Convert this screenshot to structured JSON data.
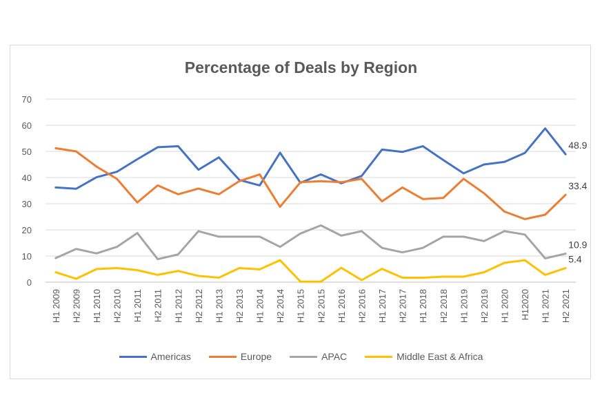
{
  "chart_data": {
    "type": "line",
    "title": "Percentage of Deals by Region",
    "xlabel": "",
    "ylabel": "",
    "ylim": [
      0,
      70
    ],
    "yticks": [
      0,
      10,
      20,
      30,
      40,
      50,
      60,
      70
    ],
    "grid": true,
    "legend_position": "bottom",
    "categories": [
      "H1 2009",
      "H2 2009",
      "H1 2010",
      "H2 2010",
      "H1 2011",
      "H2 2011",
      "H1 2012",
      "H2 2012",
      "H1 2013",
      "H2 2013",
      "H1 2014",
      "H2 2014",
      "H1 2015",
      "H2 2015",
      "H1 2016",
      "H2 2016",
      "H1 2017",
      "H2 2017",
      "H1 2018",
      "H2 2018",
      "H1 2019",
      "H2 2019",
      "H1 2020",
      "H12020",
      "H1 2021",
      "H2 2021"
    ],
    "series": [
      {
        "name": "Americas",
        "color": "#4472c4",
        "values": [
          36.2,
          35.7,
          40.1,
          42.2,
          47.0,
          51.6,
          52.0,
          43.0,
          47.7,
          39.1,
          37.0,
          49.5,
          38.0,
          41.2,
          37.8,
          40.6,
          50.7,
          49.8,
          52.0,
          46.7,
          41.6,
          45.0,
          46.0,
          49.4,
          58.8,
          48.9
        ],
        "end_label": "48.9"
      },
      {
        "name": "Europe",
        "color": "#ed7d31",
        "values": [
          51.2,
          50.0,
          44.2,
          39.5,
          30.5,
          37.0,
          33.6,
          35.8,
          33.6,
          38.6,
          41.2,
          28.8,
          38.2,
          38.6,
          38.2,
          39.5,
          30.9,
          36.2,
          31.8,
          32.2,
          39.5,
          34.0,
          27.0,
          24.1,
          25.8,
          33.4
        ],
        "end_label": "33.4"
      },
      {
        "name": "APAC",
        "color": "#a5a5a5",
        "values": [
          9.2,
          12.7,
          11.0,
          13.5,
          18.8,
          8.8,
          10.6,
          19.5,
          17.4,
          17.4,
          17.4,
          13.5,
          18.6,
          21.7,
          17.8,
          19.5,
          13.1,
          11.4,
          13.1,
          17.4,
          17.4,
          15.7,
          19.5,
          18.2,
          9.1,
          10.9
        ],
        "end_label": "10.9"
      },
      {
        "name": "Middle East & Africa",
        "color": "#ffc000",
        "values": [
          3.8,
          1.3,
          5.0,
          5.4,
          4.6,
          2.8,
          4.3,
          2.4,
          1.7,
          5.4,
          4.9,
          8.4,
          0.2,
          0.2,
          5.5,
          0.8,
          5.1,
          1.7,
          1.7,
          2.1,
          2.1,
          3.8,
          7.4,
          8.4,
          2.8,
          5.4
        ],
        "end_label": "5.4"
      }
    ]
  }
}
